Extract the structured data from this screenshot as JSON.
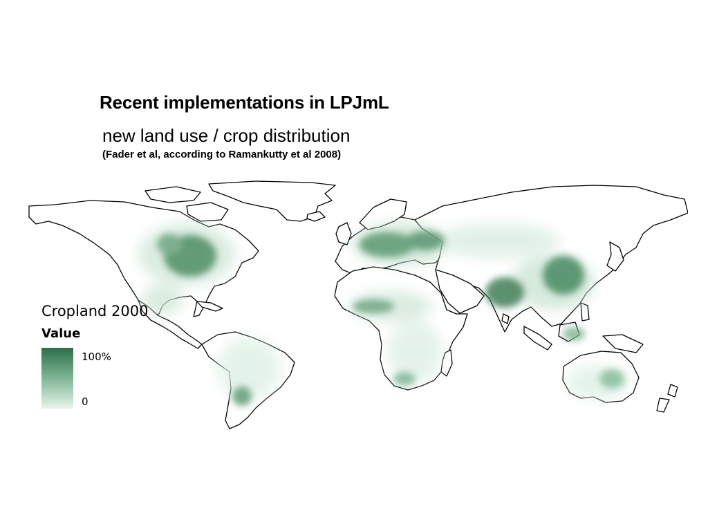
{
  "slide": {
    "title": "Recent implementations in LPJmL",
    "subtitle": "new land use / crop distribution",
    "source": "(Fader et al, according to Ramankutty et al 2008)"
  },
  "legend": {
    "title": "Cropland 2000",
    "value_label": "Value",
    "max_label": "100%",
    "min_label": "0",
    "color_max": "#2e6e4a",
    "color_min": "#e8f4ec"
  },
  "map": {
    "variable": "cropland fraction",
    "colors": {
      "low": "#e3f1e7",
      "mid": "#9ccaa9",
      "high": "#3f7f57",
      "outline": "#000000"
    }
  }
}
